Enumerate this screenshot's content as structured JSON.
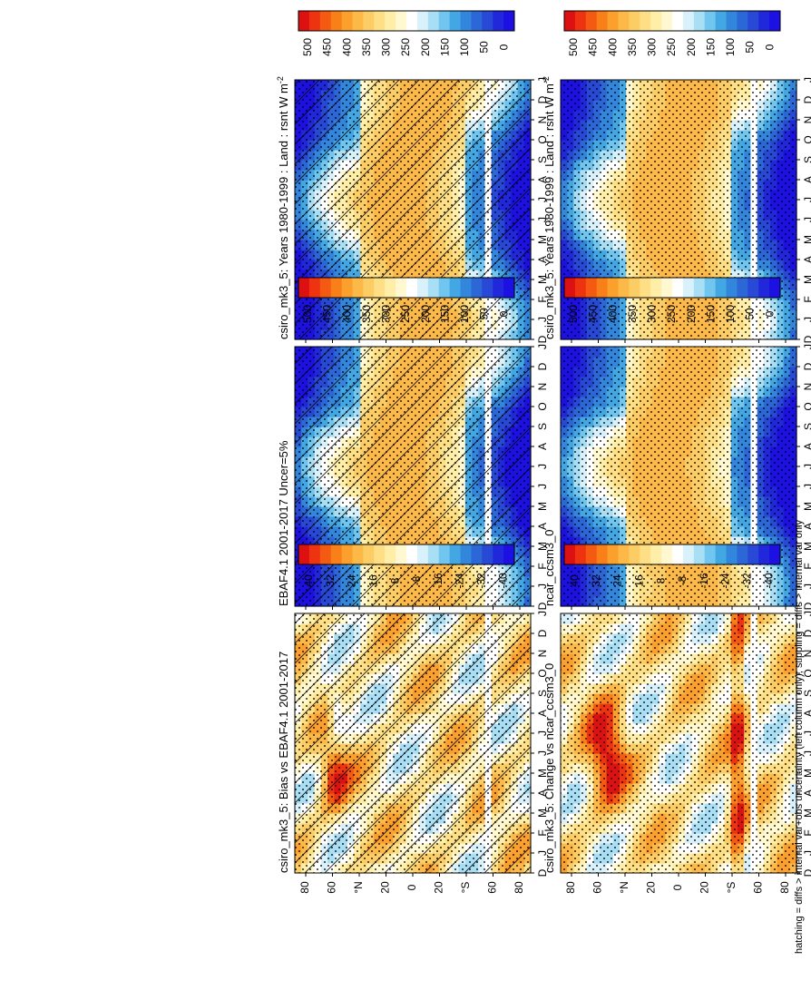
{
  "figure": {
    "footnote": "hatching = diffs > internal var+obs uncertainty (left column only); stippling = diffs > internal var only"
  },
  "palettes": {
    "abs": [
      "#dd1111",
      "#ee3311",
      "#f45a12",
      "#f97f19",
      "#fba02c",
      "#fcb948",
      "#fdcd65",
      "#fedf86",
      "#ffeea8",
      "#fff8d0",
      "#ffffff",
      "#d9f1fb",
      "#a9dff5",
      "#70c6ee",
      "#43a7e4",
      "#3287dc",
      "#2c67d8",
      "#2848d6",
      "#2128dc",
      "#1c10e3"
    ],
    "diff": [
      "#dd1111",
      "#ee3311",
      "#f45a12",
      "#f97f19",
      "#fba02c",
      "#fcb948",
      "#fdcd65",
      "#fedf86",
      "#ffeea8",
      "#fff8d0",
      "#ffffff",
      "#d9f1fb",
      "#a9dff5",
      "#70c6ee",
      "#43a7e4",
      "#3287dc",
      "#2c67d8",
      "#2848d6",
      "#2128dc",
      "#1c10e3"
    ]
  },
  "chart_data": [
    {
      "id": "p1",
      "type": "heatmap",
      "title": "csiro_mk3_5: Years 1980-1999 : Land : rsnt W m",
      "title_superscript": "-2",
      "month_labels": [
        "D",
        "J",
        "F",
        "M",
        "A",
        "M",
        "J",
        "J",
        "A",
        "S",
        "O",
        "N",
        "D",
        "J"
      ],
      "lat_labels": [
        "80",
        "60",
        "°N",
        "20",
        "0",
        "20",
        "°S",
        "60",
        "80"
      ],
      "colorbar": {
        "labels": [
          "500",
          "450",
          "400",
          "350",
          "300",
          "250",
          "200",
          "150",
          "100",
          "50",
          "0"
        ],
        "range": [
          500,
          0
        ],
        "palette": "abs"
      },
      "field": "abs",
      "hatching": true,
      "stippling": true
    },
    {
      "id": "p2",
      "type": "heatmap",
      "title": "csiro_mk3_5: Years 1980-1999 : Land : rsnt W m",
      "title_superscript": "-2",
      "month_labels": [
        "D",
        "J",
        "F",
        "M",
        "A",
        "M",
        "J",
        "J",
        "A",
        "S",
        "O",
        "N",
        "D",
        "J"
      ],
      "lat_labels": [
        "80",
        "60",
        "°N",
        "20",
        "0",
        "20",
        "°S",
        "60",
        "80"
      ],
      "colorbar": {
        "labels": [
          "500",
          "450",
          "400",
          "350",
          "300",
          "250",
          "200",
          "150",
          "100",
          "50",
          "0"
        ],
        "range": [
          500,
          0
        ],
        "palette": "abs"
      },
      "field": "abs",
      "hatching": false,
      "stippling": true
    },
    {
      "id": "p3",
      "type": "heatmap",
      "title": "EBAF4.1 2001-2017 Uncer=5%",
      "month_labels": [
        "D",
        "J",
        "F",
        "M",
        "A",
        "M",
        "J",
        "J",
        "A",
        "S",
        "O",
        "N",
        "D",
        "J"
      ],
      "lat_labels": [
        "80",
        "60",
        "°N",
        "20",
        "0",
        "20",
        "°S",
        "60",
        "80"
      ],
      "colorbar": {
        "labels": [
          "500",
          "450",
          "400",
          "350",
          "300",
          "250",
          "200",
          "150",
          "100",
          "50",
          "0"
        ],
        "range": [
          500,
          0
        ],
        "palette": "abs"
      },
      "field": "abs",
      "hatching": true,
      "stippling": true
    },
    {
      "id": "p4",
      "type": "heatmap",
      "title": "ncar_ccsm3_0",
      "month_labels": [
        "D",
        "J",
        "F",
        "M",
        "A",
        "M",
        "J",
        "J",
        "A",
        "S",
        "O",
        "N",
        "D",
        "J"
      ],
      "lat_labels": [
        "80",
        "60",
        "°N",
        "20",
        "0",
        "20",
        "°S",
        "60",
        "80"
      ],
      "colorbar": {
        "labels": [
          "500",
          "450",
          "400",
          "350",
          "300",
          "250",
          "200",
          "150",
          "100",
          "50",
          "0"
        ],
        "range": [
          500,
          0
        ],
        "palette": "abs"
      },
      "field": "abs",
      "hatching": false,
      "stippling": true
    },
    {
      "id": "p5",
      "type": "heatmap",
      "title": "csiro_mk3_5: Bias vs EBAF4.1 2001-2017",
      "month_labels": [
        "D",
        "J",
        "F",
        "M",
        "A",
        "M",
        "J",
        "J",
        "A",
        "S",
        "O",
        "N",
        "D",
        "J"
      ],
      "lat_labels": [
        "80",
        "60",
        "°N",
        "20",
        "0",
        "20",
        "°S",
        "60",
        "80"
      ],
      "colorbar": {
        "labels": [
          "40",
          "32",
          "24",
          "16",
          "8",
          "-8",
          "-16",
          "-24",
          "-32",
          "-40"
        ],
        "range": [
          40,
          -40
        ],
        "palette": "diff"
      },
      "field": "bias",
      "hatching": true,
      "stippling": true
    },
    {
      "id": "p6",
      "type": "heatmap",
      "title": "csiro_mk3_5: Change vs ncar_ccsm3_0",
      "month_labels": [
        "D",
        "J",
        "F",
        "M",
        "A",
        "M",
        "J",
        "J",
        "A",
        "S",
        "O",
        "N",
        "D",
        "J"
      ],
      "lat_labels": [
        "80",
        "60",
        "°N",
        "20",
        "0",
        "20",
        "°S",
        "60",
        "80"
      ],
      "colorbar": {
        "labels": [
          "40",
          "32",
          "24",
          "16",
          "8",
          "-8",
          "-16",
          "-24",
          "-32",
          "-40"
        ],
        "range": [
          40,
          -40
        ],
        "palette": "diff"
      },
      "field": "change",
      "hatching": false,
      "stippling": true
    }
  ]
}
